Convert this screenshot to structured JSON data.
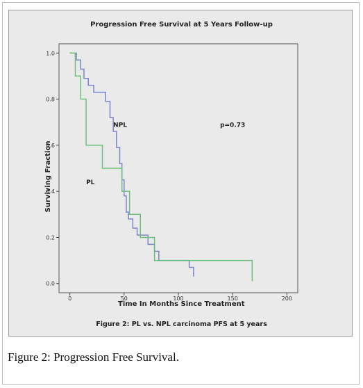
{
  "caption": "Figure 2: Progression Free Survival.",
  "chart_data": {
    "type": "line",
    "title": "Progression Free Survival at 5 Years Follow-up",
    "xlabel": "Time In Months Since Treatment",
    "ylabel": "Surviving Fraction",
    "inner_caption": "Figure 2: PL vs. NPL carcinoma PFS at 5 years",
    "annotation": "p=0.73",
    "xlim": [
      -10,
      210
    ],
    "ylim": [
      -0.04,
      1.04
    ],
    "x_ticks": [
      0,
      50,
      100,
      150,
      200
    ],
    "y_ticks": [
      0.0,
      0.2,
      0.4,
      0.6,
      0.8,
      1.0
    ],
    "x_tick_labels": [
      "0",
      "50",
      "100",
      "150",
      "200"
    ],
    "y_tick_labels": [
      "0.0",
      "0.2",
      "0.4",
      "0.6",
      "0.8",
      "1.0"
    ],
    "grid": false,
    "step": true,
    "series": [
      {
        "name": "NPL",
        "color": "#7b86c9",
        "label_at": [
          40,
          0.68
        ],
        "x": [
          0,
          6,
          10,
          13,
          17,
          22,
          33,
          37,
          40,
          43,
          46,
          48,
          50,
          52,
          54,
          58,
          62,
          65,
          72,
          78,
          82,
          110,
          114
        ],
        "y": [
          1.0,
          0.97,
          0.93,
          0.89,
          0.86,
          0.83,
          0.79,
          0.72,
          0.66,
          0.59,
          0.52,
          0.45,
          0.38,
          0.31,
          0.28,
          0.24,
          0.21,
          0.21,
          0.17,
          0.14,
          0.1,
          0.07,
          0.03
        ]
      },
      {
        "name": "PL",
        "color": "#6cc07a",
        "label_at": [
          15,
          0.43
        ],
        "x": [
          0,
          5,
          10,
          15,
          30,
          48,
          55,
          65,
          78,
          82,
          168
        ],
        "y": [
          1.0,
          0.9,
          0.8,
          0.6,
          0.5,
          0.4,
          0.3,
          0.2,
          0.1,
          0.1,
          0.01
        ]
      }
    ]
  }
}
